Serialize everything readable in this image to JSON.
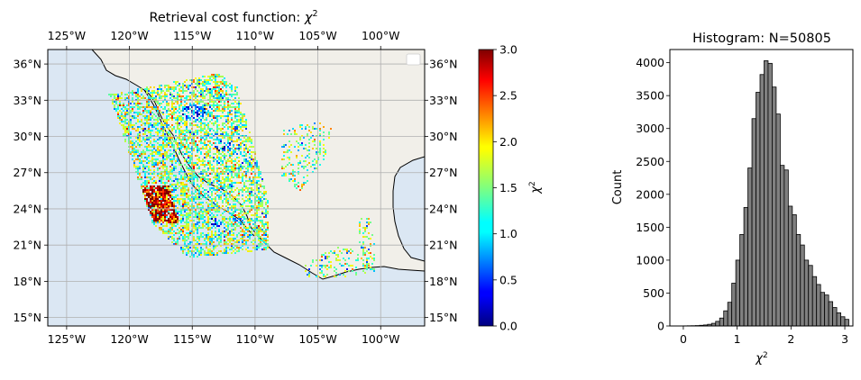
{
  "chart_data": [
    {
      "type": "heatmap",
      "title_prefix": "Retrieval cost function: ",
      "title_symbol": "χ",
      "title_sup": "2",
      "x_ticks": [
        {
          "value": -125,
          "label": "125°W"
        },
        {
          "value": -120,
          "label": "120°W"
        },
        {
          "value": -115,
          "label": "115°W"
        },
        {
          "value": -110,
          "label": "110°W"
        },
        {
          "value": -105,
          "label": "105°W"
        },
        {
          "value": -100,
          "label": "100°W"
        }
      ],
      "y_ticks": [
        {
          "value": 15,
          "label": "15°N"
        },
        {
          "value": 18,
          "label": "18°N"
        },
        {
          "value": 21,
          "label": "21°N"
        },
        {
          "value": 24,
          "label": "24°N"
        },
        {
          "value": 27,
          "label": "27°N"
        },
        {
          "value": 30,
          "label": "30°N"
        },
        {
          "value": 33,
          "label": "33°N"
        },
        {
          "value": 36,
          "label": "36°N"
        }
      ],
      "xlim": [
        -126.5,
        -96.5
      ],
      "ylim": [
        14.3,
        37.2
      ],
      "grid": true,
      "ocean_color": "#dbe7f3",
      "land_color": "#f1efe9",
      "colormap": "jet",
      "colorbar": {
        "label_symbol": "χ",
        "label_sup": "2",
        "range": [
          0,
          3
        ],
        "ticks": [
          "0.0",
          "0.5",
          "1.0",
          "1.5",
          "2.0",
          "2.5",
          "3.0"
        ]
      }
    },
    {
      "type": "bar",
      "title": "Histogram: N=50805",
      "xlabel_symbol": "χ",
      "xlabel_sup": "2",
      "ylabel": "Count",
      "xlim": [
        -0.25,
        3.15
      ],
      "ylim": [
        0,
        4200
      ],
      "x_ticks": [
        "0",
        "1",
        "2",
        "3"
      ],
      "y_ticks": [
        "0",
        "500",
        "1000",
        "1500",
        "2000",
        "2500",
        "3000",
        "3500",
        "4000"
      ],
      "bar_color": "#808080",
      "bin_start": 0.0,
      "bin_width": 0.075,
      "counts": [
        2,
        3,
        4,
        6,
        10,
        15,
        25,
        40,
        70,
        120,
        230,
        360,
        650,
        1000,
        1390,
        1800,
        2400,
        3150,
        3550,
        3820,
        4030,
        3990,
        3630,
        3220,
        2440,
        2370,
        1820,
        1690,
        1390,
        1230,
        1000,
        920,
        750,
        630,
        510,
        470,
        370,
        280,
        200,
        140,
        100
      ]
    }
  ]
}
